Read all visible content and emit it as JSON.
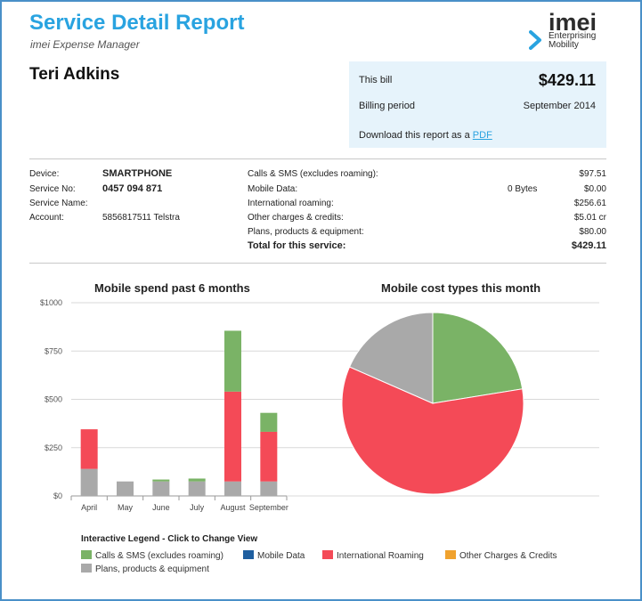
{
  "header": {
    "title": "Service Detail Report",
    "subtitle": "imei Expense Manager",
    "logo_word": "imei",
    "logo_tag_line1": "Enterprising",
    "logo_tag_line2": "Mobility"
  },
  "customer": {
    "name": "Teri Adkins"
  },
  "bill": {
    "this_bill_label": "This bill",
    "this_bill_value": "$429.11",
    "period_label": "Billing period",
    "period_value": "September 2014",
    "download_text": "Download this report as a",
    "pdf_link": "PDF"
  },
  "device": {
    "device_label": "Device:",
    "device_value": "SMARTPHONE",
    "service_no_label": "Service No:",
    "service_no_value": "0457 094 871",
    "service_name_label": "Service Name:",
    "service_name_value": "",
    "account_label": "Account:",
    "account_value": "5856817511 Telstra"
  },
  "charges": {
    "rows": [
      {
        "label": "Calls & SMS (excludes roaming):",
        "extra": "",
        "value": "$97.51"
      },
      {
        "label": "Mobile Data:",
        "extra": "0 Bytes",
        "value": "$0.00"
      },
      {
        "label": "International roaming:",
        "extra": "",
        "value": "$256.61"
      },
      {
        "label": "Other charges & credits:",
        "extra": "",
        "value": "$5.01 cr"
      },
      {
        "label": "Plans, products & equipment:",
        "extra": "",
        "value": "$80.00"
      }
    ],
    "total_label": "Total for this service:",
    "total_value": "$429.11"
  },
  "colors": {
    "calls": "#7ab366",
    "data": "#1f5fa0",
    "roaming": "#f44a57",
    "other": "#f0a22e",
    "plans": "#a9a9a9"
  },
  "chart_data": [
    {
      "type": "bar",
      "stacked": true,
      "title": "Mobile spend past 6 months",
      "categories": [
        "April",
        "May",
        "June",
        "July",
        "August",
        "September"
      ],
      "ylim": [
        0,
        1000
      ],
      "yticks": [
        "$0",
        "$250",
        "$500",
        "$750",
        "$1000"
      ],
      "ytick_values": [
        0,
        250,
        500,
        750,
        1000
      ],
      "grid": true,
      "series": [
        {
          "name": "Plans, products & equipment",
          "color_key": "plans",
          "values": [
            140,
            75,
            75,
            75,
            75,
            75
          ]
        },
        {
          "name": "International Roaming",
          "color_key": "roaming",
          "values": [
            205,
            0,
            0,
            0,
            465,
            257
          ]
        },
        {
          "name": "Calls & SMS (excludes roaming)",
          "color_key": "calls",
          "values": [
            0,
            0,
            10,
            15,
            315,
            98
          ]
        }
      ]
    },
    {
      "type": "pie",
      "title": "Mobile cost types this month",
      "slices": [
        {
          "name": "Calls & SMS (excludes roaming)",
          "color_key": "calls",
          "value": 97.51
        },
        {
          "name": "Mobile Data",
          "color_key": "data",
          "value": 0
        },
        {
          "name": "International Roaming",
          "color_key": "roaming",
          "value": 256.61
        },
        {
          "name": "Other Charges & Credits",
          "color_key": "other",
          "value": 0
        },
        {
          "name": "Plans, products & equipment",
          "color_key": "plans",
          "value": 80.0
        }
      ]
    }
  ],
  "legend": {
    "title": "Interactive Legend - Click to Change View",
    "items": [
      {
        "label": "Calls & SMS (excludes roaming)",
        "color_key": "calls"
      },
      {
        "label": "Mobile Data",
        "color_key": "data"
      },
      {
        "label": "International Roaming",
        "color_key": "roaming"
      },
      {
        "label": "Other Charges & Credits",
        "color_key": "other"
      },
      {
        "label": "Plans, products & equipment",
        "color_key": "plans"
      }
    ]
  }
}
